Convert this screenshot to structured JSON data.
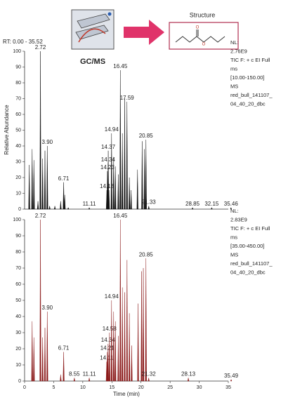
{
  "header": {
    "instrument_label": "GC/MS",
    "structure_label": "Structure",
    "rt_range": "RT: 0.00 - 35.52"
  },
  "chart_data": [
    {
      "type": "chromatogram",
      "color": "#111111",
      "y_label": "Relative Abundance",
      "xlim": [
        0,
        35
      ],
      "ylim": [
        0,
        100
      ],
      "yticks": [
        0,
        10,
        20,
        30,
        40,
        50,
        60,
        70,
        80,
        90,
        100
      ],
      "info": [
        "NL:",
        "2.76E9",
        "TIC F: + c EI Full",
        "ms",
        "[10.00-150.00]",
        "MS",
        "red_bull_141107_",
        "04_40_20_dbc"
      ],
      "x": [
        0.8,
        1.3,
        1.6,
        2.3,
        2.72,
        3.1,
        3.5,
        3.9,
        4.3,
        5.2,
        6.2,
        6.71,
        6.9,
        7.5,
        11.11,
        14.13,
        14.23,
        14.34,
        14.37,
        14.5,
        14.94,
        15.3,
        15.6,
        16.1,
        16.45,
        16.8,
        17.2,
        17.59,
        18.0,
        18.3,
        19.4,
        20.2,
        20.6,
        20.85,
        21.33,
        28.85,
        32.15,
        35.46
      ],
      "values": [
        28,
        38,
        31,
        5,
        100,
        32,
        37,
        40,
        2,
        2,
        5,
        17,
        9,
        1,
        1,
        12,
        24,
        29,
        37,
        12,
        48,
        33,
        27,
        22,
        88,
        48,
        70,
        68,
        20,
        12,
        25,
        43,
        38,
        44,
        2,
        1,
        1,
        1
      ],
      "peak_labels": [
        null,
        null,
        null,
        null,
        "2.72",
        null,
        null,
        "3.90",
        null,
        null,
        null,
        "6.71",
        null,
        null,
        "11.11",
        "14.13",
        "14.23",
        "14.34",
        "14.37",
        null,
        "14.94",
        null,
        null,
        null,
        "16.45",
        null,
        null,
        "17.59",
        null,
        null,
        null,
        null,
        null,
        "20.85",
        "21.33",
        "28.85",
        "32.15",
        "35.46"
      ]
    },
    {
      "type": "chromatogram",
      "color": "#8b1a1a",
      "x_label": "Time (min)",
      "xlim": [
        0,
        35
      ],
      "xticks": [
        0,
        5,
        10,
        15,
        20,
        25,
        30,
        35
      ],
      "ylim": [
        0,
        100
      ],
      "yticks": [
        0,
        10,
        20,
        30,
        40,
        50,
        60,
        70,
        80,
        90,
        100
      ],
      "info": [
        "NL:",
        "2.83E9",
        "TIC F: + c EI Full",
        "ms",
        "[35.00-450.00]",
        "MS",
        "red_bull_141107_",
        "04_40_20_dbc"
      ],
      "x": [
        1.3,
        1.6,
        2.72,
        3.1,
        3.5,
        3.9,
        6.2,
        6.71,
        8.55,
        11.11,
        14.11,
        14.21,
        14.34,
        14.58,
        14.94,
        15.3,
        15.6,
        16.1,
        16.45,
        16.8,
        17.2,
        17.6,
        18.0,
        18.4,
        19.5,
        20.1,
        20.4,
        20.85,
        21.32,
        28.13,
        35.49
      ],
      "values": [
        37,
        27,
        100,
        27,
        33,
        43,
        4,
        18,
        2,
        2,
        12,
        18,
        23,
        30,
        50,
        43,
        37,
        28,
        100,
        58,
        55,
        75,
        42,
        22,
        48,
        68,
        70,
        76,
        2,
        2,
        1
      ],
      "peak_labels": [
        null,
        null,
        "2.72",
        null,
        null,
        "3.90",
        null,
        "6.71",
        "8.55",
        "11.11",
        "14.11",
        "14.21",
        "14.34",
        "14.58",
        "14.94",
        null,
        null,
        null,
        "16.45",
        null,
        null,
        null,
        null,
        null,
        null,
        null,
        null,
        "20.85",
        "21.32",
        "28.13",
        "35.49"
      ]
    }
  ]
}
